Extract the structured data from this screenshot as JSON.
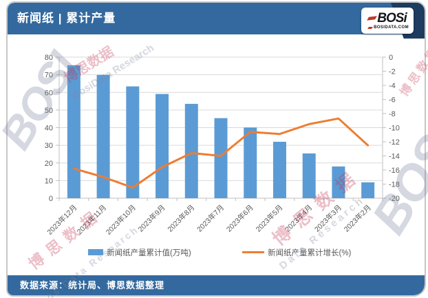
{
  "header": {
    "title": "新闻纸 | 累计产量",
    "logo_text": "BOSi",
    "logo_sub": "BOSIDATA.COM"
  },
  "footer": {
    "source_label": "数据来源：统计局、博思数据整理"
  },
  "watermark": {
    "cn": "博思数据",
    "en": "BosiData Research",
    "en_short": "Data Research",
    "logo": "BOSI"
  },
  "colors": {
    "header_blue": "#33699e",
    "corner_navy": "#1d3c60",
    "bar_blue": "#5B9BD5",
    "line_orange": "#ED7D31",
    "axis_text": "#595959",
    "grid_gray": "#D9D9D9",
    "axis_line_gray": "#BFBFBF",
    "logo_red": "#c0392b",
    "watermark_red": "#c02a4a",
    "watermark_gray": "#7d87a0"
  },
  "chart_data": {
    "type": "bar+line combo",
    "categories": [
      "2023年12月",
      "2023年11月",
      "2023年10月",
      "2023年9月",
      "2023年8月",
      "2023年7月",
      "2023年6月",
      "2023年5月",
      "2023年4月",
      "2023年3月",
      "2023年2月"
    ],
    "series": [
      {
        "name": "新闻纸产量累计值(万吨)",
        "type": "bar",
        "axis": "left",
        "color": "#5B9BD5",
        "values": [
          75.4,
          69.9,
          63.4,
          59.1,
          53.5,
          45.4,
          40.1,
          32.0,
          25.4,
          18.0,
          9.0
        ]
      },
      {
        "name": "新闻纸产量累计增长(%)",
        "type": "line",
        "axis": "right",
        "color": "#ED7D31",
        "values": [
          -15.8,
          -17.0,
          -18.5,
          -15.6,
          -13.6,
          -14.0,
          -10.6,
          -10.9,
          -9.5,
          -8.7,
          -12.5
        ]
      }
    ],
    "left_axis": {
      "min": 0,
      "max": 80,
      "step": 10
    },
    "right_axis": {
      "min": -20,
      "max": 0,
      "step": 2
    },
    "grid": true,
    "legend_position": "bottom",
    "x_label_rotation": -45
  }
}
